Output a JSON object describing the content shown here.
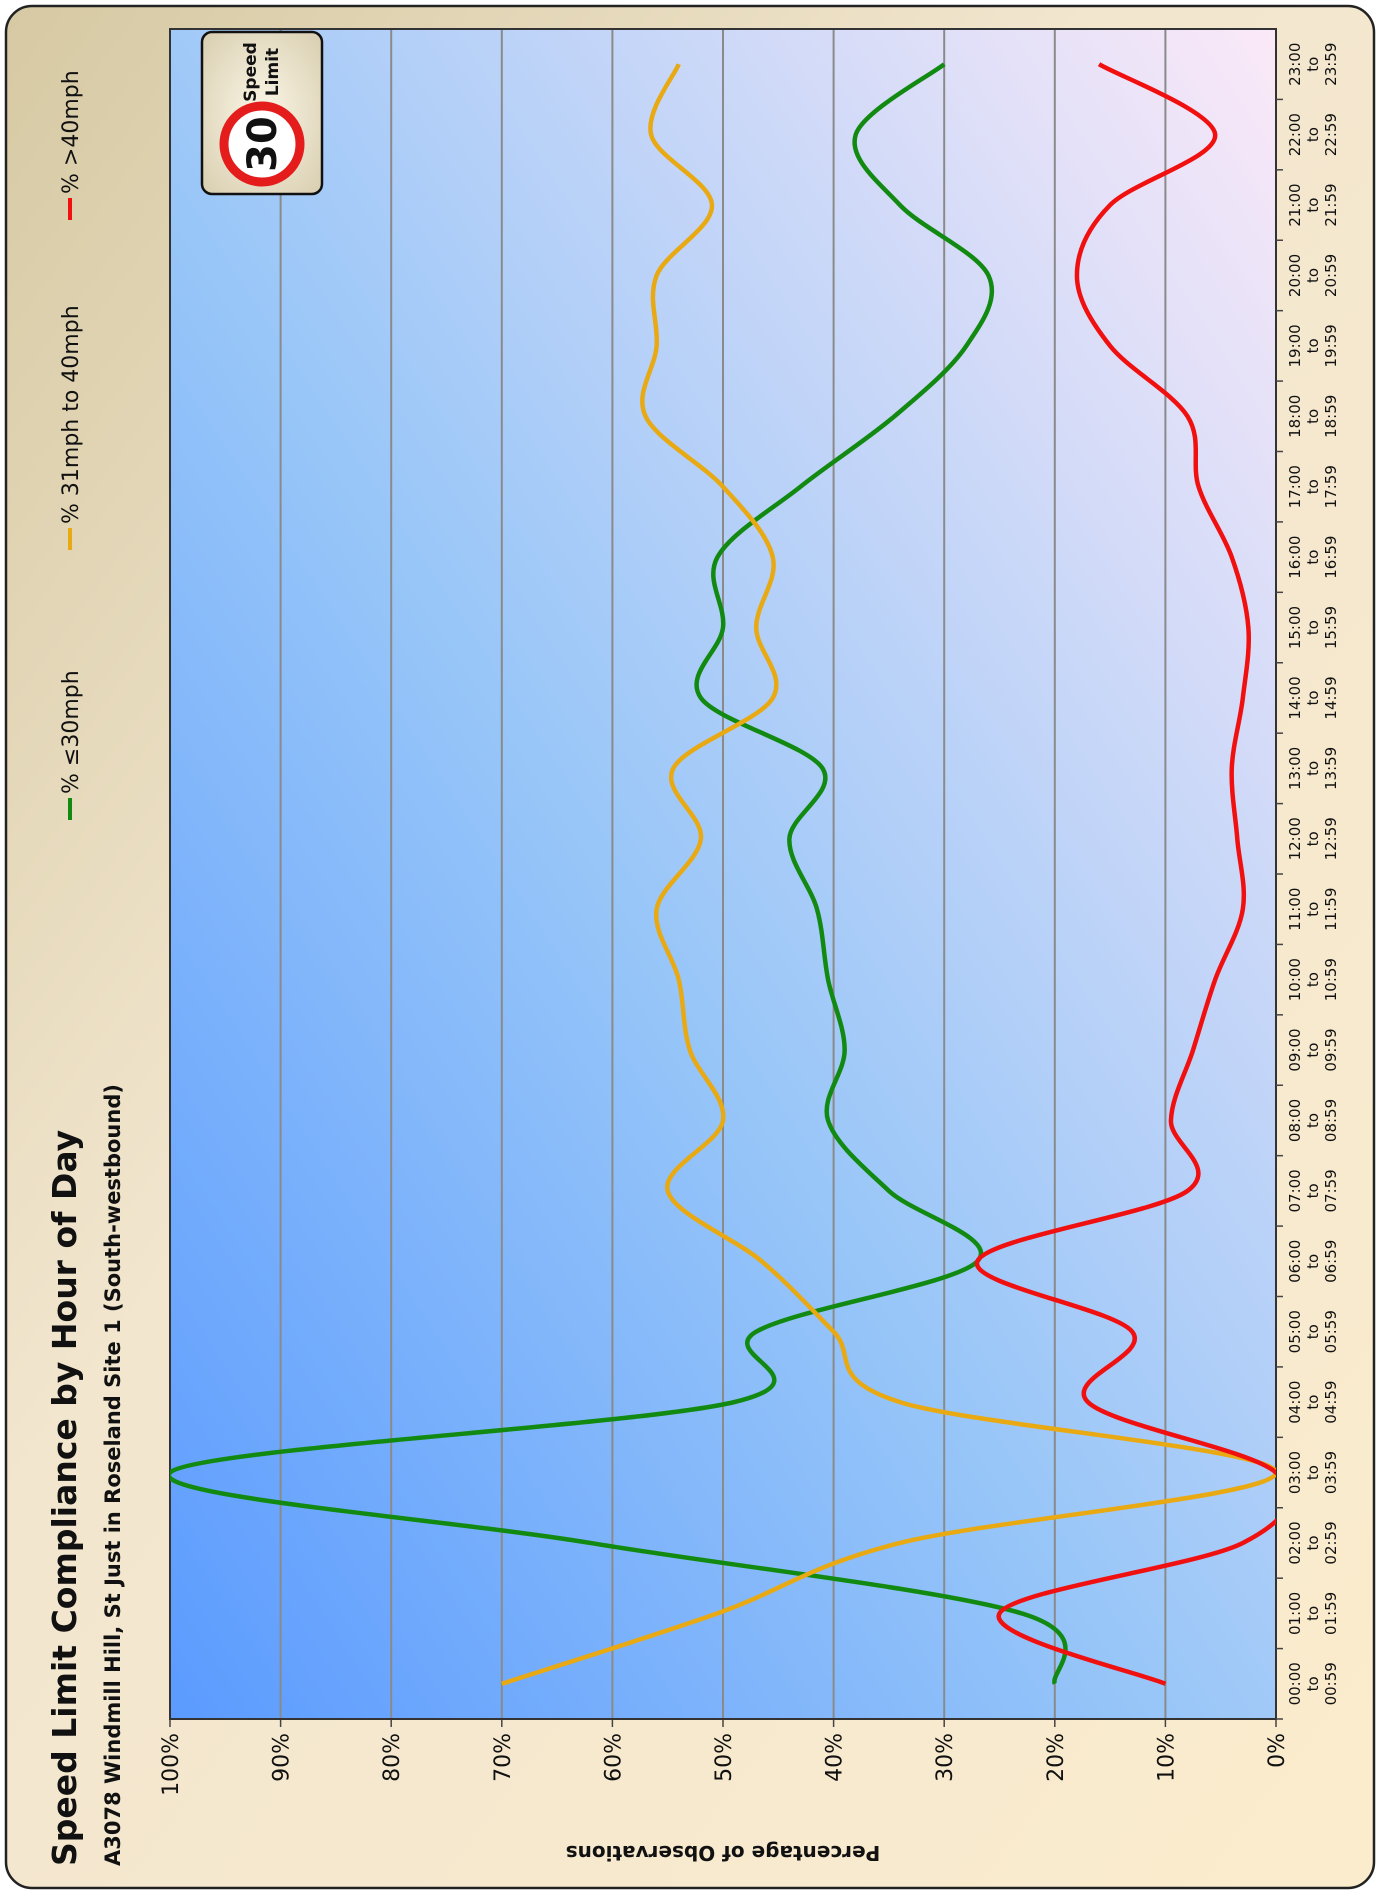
{
  "chart_data": {
    "type": "line",
    "title": "Speed Limit Compliance by Hour of Day",
    "subtitle": "A3078 Windmill Hill, St Just in Roseland Site 1 (South-westbound)",
    "y_label": "Percentage of Observations",
    "categories": [
      "00:00 to 00:59",
      "01:00 to 01:59",
      "02:00 to 02:59",
      "03:00 to 03:59",
      "04:00 to 04:59",
      "05:00 to 05:59",
      "06:00 to 06:59",
      "07:00 to 07:59",
      "08:00 to 08:59",
      "09:00 to 09:59",
      "10:00 to 10:59",
      "11:00 to 11:59",
      "12:00 to 12:59",
      "13:00 to 13:59",
      "14:00 to 14:59",
      "15:00 to 15:59",
      "16:00 to 16:59",
      "17:00 to 17:59",
      "18:00 to 18:59",
      "19:00 to 19:59",
      "20:00 to 20:59",
      "21:00 to 21:59",
      "22:00 to 22:59",
      "23:00 to 23:59"
    ],
    "series": [
      {
        "name": "% ≤30mph",
        "color": "#128a12",
        "values": [
          20,
          23,
          62,
          100,
          49,
          47,
          27,
          35,
          40.5,
          39,
          40.5,
          41.5,
          44,
          41,
          52,
          50,
          50.5,
          43,
          34.5,
          28,
          26,
          34,
          38,
          30
        ]
      },
      {
        "name": "% 31mph to 40mph",
        "color": "#e8a912",
        "values": [
          70,
          50.5,
          34,
          0,
          34,
          40,
          46.5,
          55,
          50,
          53,
          54,
          56,
          52,
          54.5,
          45.5,
          47,
          45.5,
          50,
          57,
          56,
          56,
          51,
          56.5,
          54
        ]
      },
      {
        "name": "% >40mph",
        "color": "#f01010",
        "values": [
          10,
          25,
          3,
          0,
          17,
          13,
          27,
          8,
          9.5,
          7.5,
          5.5,
          3,
          3.5,
          4,
          3,
          2.5,
          4,
          7,
          8,
          15,
          18,
          15,
          5.5,
          16
        ]
      }
    ],
    "ylim": [
      0,
      100
    ],
    "yticks": [
      {
        "value": 0,
        "label": "0%"
      },
      {
        "value": 10,
        "label": "10%"
      },
      {
        "value": 20,
        "label": "20%"
      },
      {
        "value": 30,
        "label": "30%"
      },
      {
        "value": 40,
        "label": "40%"
      },
      {
        "value": 50,
        "label": "50%"
      },
      {
        "value": 60,
        "label": "60%"
      },
      {
        "value": 70,
        "label": "70%"
      },
      {
        "value": 80,
        "label": "80%"
      },
      {
        "value": 90,
        "label": "90%"
      },
      {
        "value": 100,
        "label": "100%"
      }
    ],
    "grid": true,
    "legend": "top",
    "sign": {
      "number": "30",
      "lines": [
        "Speed",
        "Limit"
      ]
    }
  }
}
